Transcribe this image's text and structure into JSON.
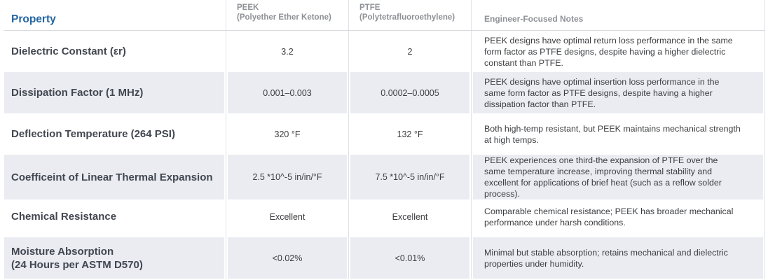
{
  "colors": {
    "accent": "#2465a3",
    "row_band": "#eaecf2",
    "column_header": "#8e9196",
    "property_label": "#424750",
    "divider": "#dfe1e6"
  },
  "table": {
    "header": {
      "property": "Property",
      "peek_name": "PEEK",
      "peek_sub": "(Polyether Ether Ketone)",
      "ptfe_name": "PTFE",
      "ptfe_sub": "(Polytetrafluoroethylene)",
      "notes": "Engineer-Focused Notes"
    },
    "rows": [
      {
        "property": "Dielectric Constant (εr)",
        "peek": "3.2",
        "ptfe": "2",
        "notes": "PEEK designs have optimal return loss performance in the same form factor as PTFE designs, despite having a higher dielectric constant than PTFE."
      },
      {
        "property": "Dissipation Factor (1 MHz)",
        "peek": "0.001–0.003",
        "ptfe": "0.0002–0.0005",
        "notes": "PEEK designs have optimal insertion loss performance in the same form factor as PTFE designs, despite having a higher dissipation factor than PTFE."
      },
      {
        "property": "Deflection Temperature (264 PSI)",
        "peek": "320 °F",
        "ptfe": "132 °F",
        "notes": "Both high-temp resistant, but PEEK maintains mechanical strength at high temps."
      },
      {
        "property": "Coefficeint of Linear Thermal Expansion",
        "peek": "2.5 *10^-5 in/in/°F",
        "ptfe": "7.5 *10^-5 in/in/°F",
        "notes": "PEEK experiences one third-the expansion of PTFE over the same temperature increase, improving thermal stability and excellent for applications of brief heat (such as a reflow solder process)."
      },
      {
        "property": "Chemical Resistance",
        "peek": "Excellent",
        "ptfe": "Excellent",
        "notes": "Comparable chemical resistance; PEEK has broader mechanical performance under harsh conditions."
      },
      {
        "property": "Moisture Absorption\n(24 Hours per ASTM D570)",
        "peek": "<0.02%",
        "ptfe": "<0.01%",
        "notes": "Minimal but stable absorption; retains mechanical and dielectric properties under humidity."
      }
    ]
  }
}
